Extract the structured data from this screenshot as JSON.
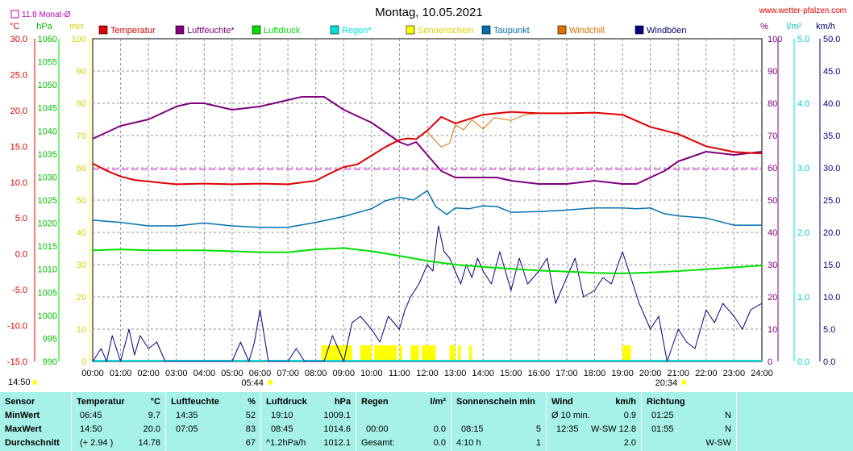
{
  "header": {
    "title": "Montag, 10.05.2021",
    "site": "www.wetter-pfalzen.com",
    "month_avg": "11.8 Monat-Ø",
    "time_start": "14:50",
    "sunrise": "05:44",
    "sunset": "20:34"
  },
  "units": {
    "temp": "°C",
    "hpa": "hPa",
    "min": "min",
    "pct": "%",
    "lm2": "l/m²",
    "kmh": "km/h"
  },
  "colors": {
    "temp": "#e00000",
    "hum": "#800080",
    "press": "#00e000",
    "rain": "#00e0e0",
    "sun": "#ffff00",
    "dew": "#0070b0",
    "chill": "#e07000",
    "gust": "#000080",
    "bg_stats": "#a6f2e8"
  },
  "chart_data": {
    "type": "line",
    "x_ticks": [
      "00:00",
      "01:00",
      "02:00",
      "03:00",
      "04:00",
      "05:00",
      "06:00",
      "07:00",
      "08:00",
      "09:00",
      "10:00",
      "11:00",
      "12:00",
      "13:00",
      "14:00",
      "15:00",
      "16:00",
      "17:00",
      "18:00",
      "19:00",
      "20:00",
      "21:00",
      "22:00",
      "23:00",
      "24:00"
    ],
    "axes": {
      "temp": {
        "range": [
          -15,
          30
        ],
        "ticks": [
          "30.0",
          "25.0",
          "20.0",
          "15.0",
          "10.0",
          "5.0",
          "0.0",
          "-5.0",
          "-10.0",
          "-15.0"
        ]
      },
      "hpa": {
        "range": [
          990,
          1060
        ],
        "ticks": [
          "1060",
          "1055",
          "1050",
          "1045",
          "1040",
          "1035",
          "1030",
          "1025",
          "1020",
          "1015",
          "1010",
          "1005",
          "1000",
          "995",
          "990"
        ]
      },
      "min": {
        "range": [
          0,
          100
        ],
        "ticks": [
          "100",
          "90",
          "80",
          "70",
          "60",
          "50",
          "40",
          "30",
          "20",
          "10",
          "0"
        ]
      },
      "pct": {
        "range": [
          0,
          100
        ],
        "ticks": [
          "100",
          "90",
          "80",
          "70",
          "60",
          "50",
          "40",
          "30",
          "20",
          "10",
          "0"
        ]
      },
      "lm2": {
        "range": [
          0,
          5
        ],
        "ticks": [
          "5.0",
          "4.0",
          "3.0",
          "2.0",
          "1.0",
          "0.0"
        ]
      },
      "kmh": {
        "range": [
          0,
          50
        ],
        "ticks": [
          "50.0",
          "45.0",
          "40.0",
          "35.0",
          "30.0",
          "25.0",
          "20.0",
          "15.0",
          "10.0",
          "5.0",
          "0.0"
        ]
      }
    },
    "legend": [
      {
        "name": "Temperatur",
        "color": "#e00000"
      },
      {
        "name": "Luftfeuchte*",
        "color": "#800080"
      },
      {
        "name": "Luftdruck",
        "color": "#00e000"
      },
      {
        "name": "Regen*",
        "color": "#00e0e0"
      },
      {
        "name": "Sonnenschein",
        "color": "#ffff00"
      },
      {
        "name": "Taupunkt",
        "color": "#0070b0"
      },
      {
        "name": "Windchill",
        "color": "#e07000"
      },
      {
        "name": "Windböen",
        "color": "#000080"
      }
    ],
    "month_avg_temp": 11.8,
    "series": [
      {
        "name": "Temperatur",
        "axis": "temp",
        "x": [
          0,
          0.5,
          1,
          1.5,
          2,
          2.5,
          3,
          4,
          5,
          6,
          7,
          8,
          8.5,
          9,
          9.5,
          10,
          10.5,
          11,
          11.3,
          11.6,
          12,
          12.5,
          13,
          14,
          14.5,
          15,
          16,
          17,
          18,
          19,
          20,
          21,
          22,
          23,
          24
        ],
        "y": [
          12.6,
          11.6,
          10.8,
          10.3,
          10.1,
          9.9,
          9.7,
          9.8,
          9.7,
          9.8,
          9.7,
          10.2,
          11.2,
          12.1,
          12.5,
          13.7,
          14.9,
          15.9,
          16.1,
          16.0,
          17.2,
          19.1,
          18.2,
          19.4,
          19.6,
          19.8,
          19.6,
          19.6,
          19.7,
          19.4,
          17.7,
          16.7,
          15.0,
          14.2,
          14.0
        ]
      },
      {
        "name": "Windchill",
        "axis": "temp",
        "x": [
          12,
          12.5,
          12.8,
          13,
          13.3,
          13.6,
          14,
          14.4,
          15,
          15.5,
          16,
          17,
          18,
          19,
          20,
          21,
          22,
          23,
          24
        ],
        "y": [
          17.0,
          14.9,
          15.4,
          18.0,
          17.3,
          18.7,
          17.4,
          19.0,
          18.6,
          19.4,
          19.6,
          19.6,
          19.7,
          19.4,
          17.7,
          16.7,
          15.0,
          14.2,
          14.0
        ]
      },
      {
        "name": "Luftfeuchte*",
        "axis": "pct",
        "x": [
          0,
          0.5,
          1,
          2,
          3,
          3.5,
          4,
          5,
          6,
          6.5,
          7,
          7.5,
          8,
          8.3,
          9,
          9.5,
          10,
          10.5,
          11,
          11.3,
          11.6,
          12,
          12.5,
          13,
          14,
          14.5,
          15,
          16,
          17,
          18,
          19,
          19.5,
          20,
          20.5,
          21,
          22,
          23,
          24
        ],
        "y": [
          69,
          71,
          73,
          75,
          79,
          80,
          80,
          78,
          79,
          80,
          81,
          82,
          82,
          82,
          78,
          76,
          74,
          71,
          68,
          67,
          68,
          64,
          59,
          57,
          57,
          57,
          56,
          55,
          55,
          56,
          55,
          55,
          57,
          59,
          62,
          65,
          64,
          65
        ]
      },
      {
        "name": "Luftdruck",
        "axis": "hpa",
        "x": [
          0,
          1,
          2,
          3,
          4,
          5,
          6,
          7,
          8,
          9,
          10,
          11,
          12,
          13,
          14,
          15,
          16,
          17,
          18,
          19,
          20,
          21,
          22,
          23,
          24
        ],
        "y": [
          1014.1,
          1014.3,
          1014.1,
          1014.1,
          1014.1,
          1013.9,
          1013.7,
          1013.7,
          1014.3,
          1014.6,
          1013.9,
          1012.9,
          1011.8,
          1011.0,
          1010.5,
          1010.1,
          1009.7,
          1009.5,
          1009.2,
          1009.1,
          1009.3,
          1009.6,
          1010.0,
          1010.4,
          1010.8
        ]
      },
      {
        "name": "Taupunkt",
        "axis": "temp",
        "x": [
          0,
          1,
          2,
          3,
          4,
          5,
          6,
          7,
          8,
          9,
          10,
          10.5,
          11,
          11.5,
          12,
          12.3,
          12.7,
          13,
          13.5,
          14,
          14.5,
          15,
          16,
          17,
          18,
          19,
          19.5,
          20,
          20.5,
          21,
          22,
          23,
          24
        ],
        "y": [
          4.7,
          4.4,
          3.9,
          3.9,
          4.3,
          3.9,
          3.7,
          3.7,
          4.4,
          5.2,
          6.3,
          7.4,
          7.9,
          7.5,
          8.8,
          6.6,
          5.5,
          6.4,
          6.3,
          6.7,
          6.6,
          5.8,
          5.9,
          6.1,
          6.4,
          6.4,
          6.3,
          6.4,
          5.6,
          5.3,
          5.0,
          4.0,
          4.0
        ]
      },
      {
        "name": "Windböen",
        "axis": "kmh",
        "x": [
          0,
          0.3,
          0.5,
          0.7,
          1,
          1.3,
          1.5,
          1.7,
          2,
          2.3,
          2.6,
          3,
          3.5,
          4,
          4.5,
          5,
          5.3,
          5.6,
          5.8,
          6,
          6.3,
          6.6,
          7,
          7.3,
          7.6,
          8,
          8.3,
          8.6,
          9,
          9.3,
          9.6,
          10,
          10.3,
          10.6,
          11,
          11.2,
          11.4,
          11.7,
          12,
          12.2,
          12.4,
          12.6,
          12.8,
          13,
          13.2,
          13.4,
          13.6,
          13.8,
          14,
          14.3,
          14.6,
          15,
          15.3,
          15.6,
          16,
          16.3,
          16.6,
          17,
          17.3,
          17.6,
          18,
          18.3,
          18.6,
          19,
          19.3,
          19.6,
          20,
          20.3,
          20.6,
          21,
          21.3,
          21.6,
          22,
          22.3,
          22.6,
          23,
          23.3,
          23.6,
          24
        ],
        "y": [
          0,
          2,
          0,
          4,
          0,
          5,
          1,
          4,
          2,
          3,
          0,
          0,
          0,
          0,
          0,
          0,
          3,
          0,
          3,
          8,
          0,
          0,
          0,
          2,
          0,
          0,
          0,
          4,
          0,
          6,
          7,
          5,
          3,
          7,
          5,
          8,
          10,
          12,
          15,
          14,
          21,
          17,
          16,
          14,
          12,
          15,
          13,
          16,
          14,
          12,
          17,
          11,
          16,
          12,
          14,
          16,
          9,
          13,
          16,
          10,
          11,
          13,
          12,
          17,
          13,
          9,
          5,
          7,
          0,
          5,
          3,
          2,
          8,
          6,
          9,
          7,
          5,
          8,
          9
        ]
      }
    ],
    "sun_bars": [
      [
        8.2,
        8.8
      ],
      [
        8.8,
        9.3
      ],
      [
        9.6,
        10
      ],
      [
        10.1,
        10.5
      ],
      [
        10.5,
        10.9
      ],
      [
        11.0,
        11.1
      ],
      [
        11.4,
        11.7
      ],
      [
        11.8,
        12.3
      ],
      [
        12.8,
        13.0
      ],
      [
        13.1,
        13.2
      ],
      [
        13.5,
        13.6
      ],
      [
        19.0,
        19.3
      ]
    ]
  },
  "stats": {
    "sensor": {
      "header": "Sensor",
      "rows": [
        "MinWert",
        "MaxWert",
        "Durchschnitt"
      ]
    },
    "temperature": {
      "header": "Temperatur",
      "unit": "°C",
      "rows": [
        [
          "06:45",
          "9.7"
        ],
        [
          "14:50",
          "20.0"
        ],
        [
          "(+ 2.94 )",
          "14.78"
        ]
      ]
    },
    "humidity": {
      "header": "Luftfeuchte",
      "unit": "%",
      "rows": [
        [
          "14:35",
          "52"
        ],
        [
          "07:05",
          "83"
        ],
        [
          "",
          "67"
        ]
      ]
    },
    "pressure": {
      "header": "Luftdruck",
      "unit": "hPa",
      "rows": [
        [
          "19:10",
          "1009.1"
        ],
        [
          "08:45",
          "1014.6"
        ],
        [
          "^1.2hPa/h",
          "1012.1"
        ]
      ]
    },
    "rain": {
      "header": "Regen",
      "unit": "l/m²",
      "rows": [
        [
          "",
          ""
        ],
        [
          "00:00",
          "0.0"
        ],
        [
          "Gesamt:",
          "0.0"
        ]
      ]
    },
    "sunshine": {
      "header": "Sonnenschein min",
      "unit": "",
      "rows": [
        [
          "",
          ""
        ],
        [
          "08:15",
          "5"
        ],
        [
          "4:10 h",
          "1"
        ]
      ]
    },
    "wind": {
      "header": "Wind",
      "unit": "km/h",
      "rows": [
        [
          "Ø 10 min.",
          "0.9"
        ],
        [
          "12:35",
          "W-SW 12.8"
        ],
        [
          "",
          "2.0"
        ]
      ]
    },
    "direction": {
      "header": "Richtung",
      "unit": "",
      "rows": [
        [
          "01:25",
          "N"
        ],
        [
          "01:55",
          "N"
        ],
        [
          "",
          "W-SW"
        ]
      ]
    }
  }
}
